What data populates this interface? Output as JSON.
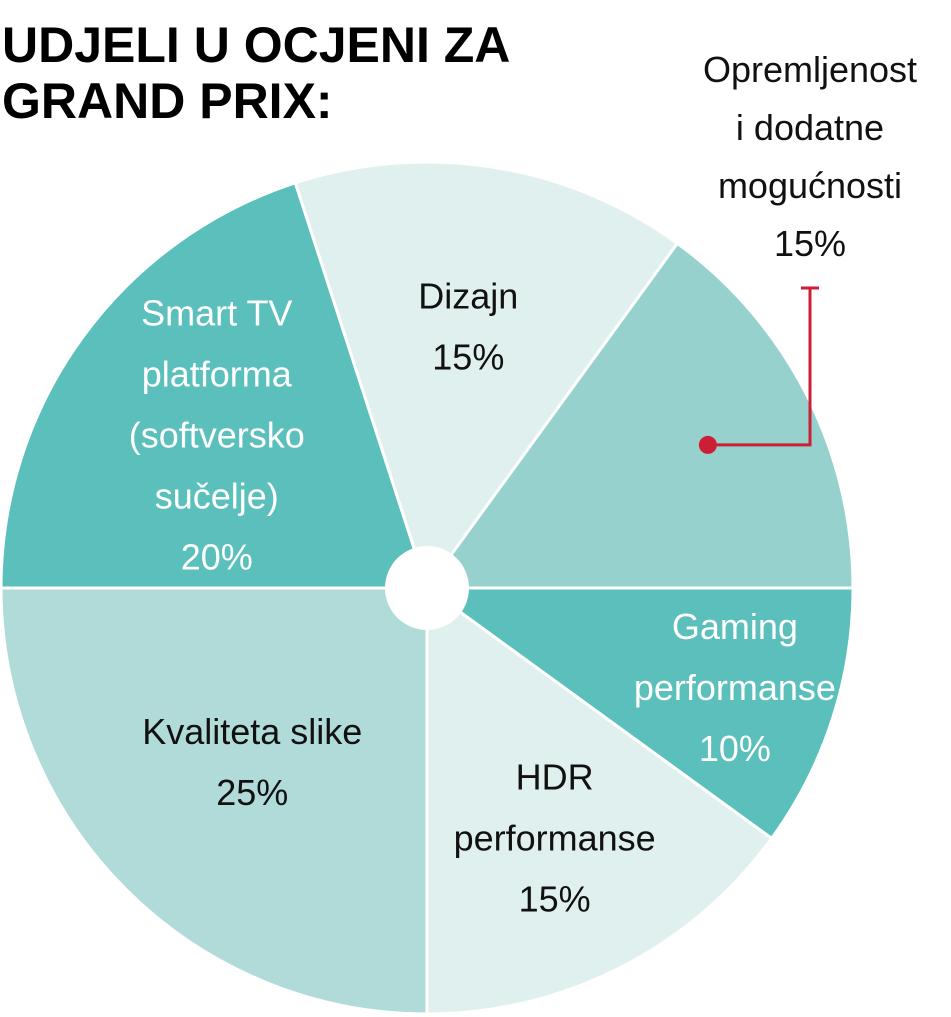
{
  "chart_data": {
    "type": "pie",
    "title_lines": [
      "UDJELI U OCJENI ZA",
      "GRAND PRIX:"
    ],
    "slices": [
      {
        "name_lines": [
          "Gaming",
          "performanse"
        ],
        "value_label": "10%",
        "value": 10,
        "color": "#5bbfbc",
        "text_color": "#ffffff"
      },
      {
        "name_lines": [
          "HDR",
          "performanse"
        ],
        "value_label": "15%",
        "value": 15,
        "color": "#e0f0ee",
        "text_color": "#111111"
      },
      {
        "name_lines": [
          "Kvaliteta slike"
        ],
        "value_label": "25%",
        "value": 25,
        "color": "#b0dbd8",
        "text_color": "#111111"
      },
      {
        "name_lines": [
          "Smart TV",
          "platforma",
          "(softversko",
          "sučelje)"
        ],
        "value_label": "20%",
        "value": 20,
        "color": "#5bbfbc",
        "text_color": "#ffffff"
      },
      {
        "name_lines": [
          "Dizajn"
        ],
        "value_label": "15%",
        "value": 15,
        "color": "#e0f0ee",
        "text_color": "#111111"
      },
      {
        "name_lines": [
          "Opremljenost",
          "i dodatne",
          "mogućnosti"
        ],
        "value_label": "15%",
        "value": 15,
        "color": "#96d1ce",
        "text_color": "#111111",
        "callout": true
      }
    ],
    "callout_color": "#cc1f36"
  }
}
